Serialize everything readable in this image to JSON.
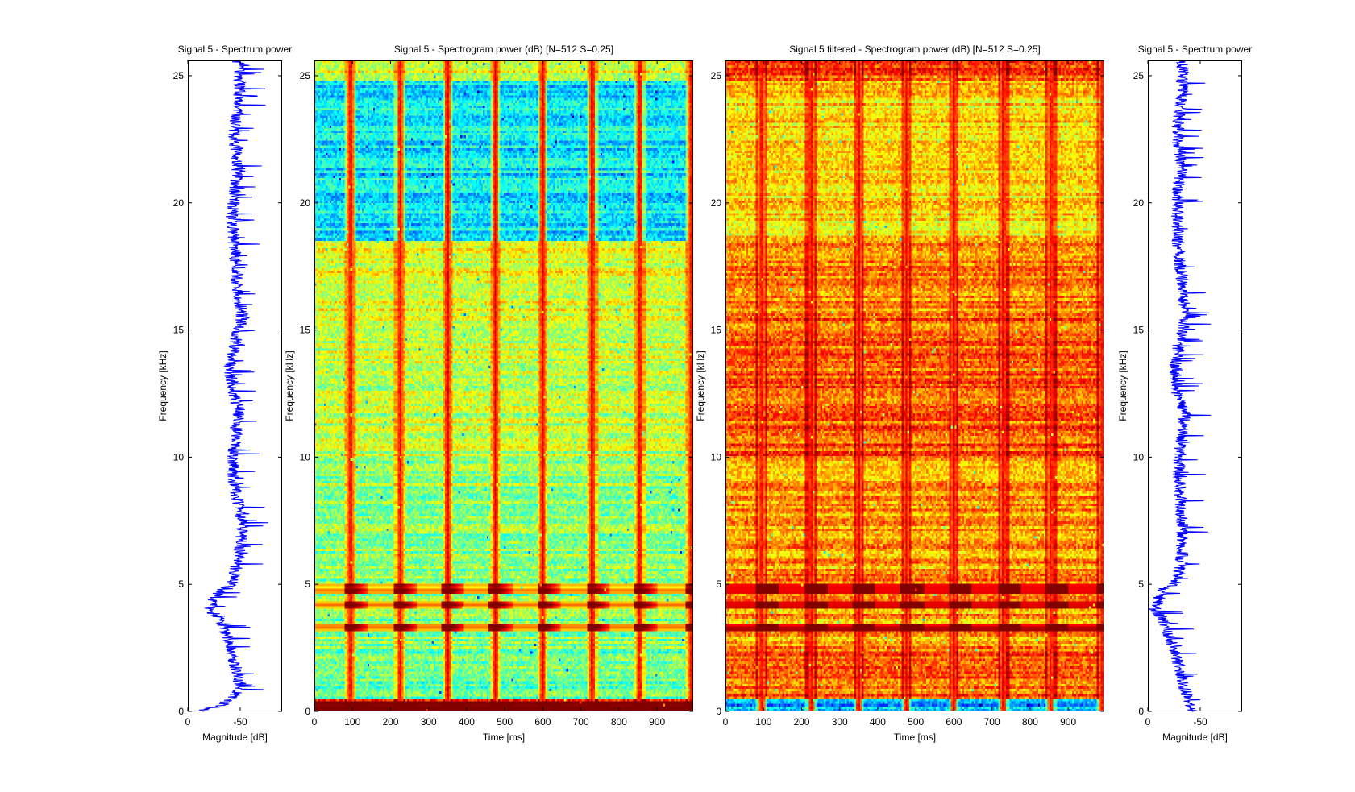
{
  "colors": {
    "spectrum_line": "#0000ff",
    "axes": "#000000",
    "background": "#ffffff",
    "colormap": "jet"
  },
  "chart_data": [
    {
      "id": "spectrum-left",
      "type": "line",
      "title": "Signal 5 - Spectrum power",
      "xlabel": "Magnitude [dB]",
      "ylabel": "Frequency [kHz]",
      "xlim": [
        0,
        -90
      ],
      "ylim": [
        0,
        25.6
      ],
      "xticks": [
        0,
        -50
      ],
      "xtick_labels": [
        "0",
        "-50"
      ],
      "yticks": [
        0,
        5,
        10,
        15,
        20,
        25
      ],
      "ytick_labels": [
        "0",
        "5",
        "10",
        "15",
        "20",
        "25"
      ],
      "series": [
        {
          "color": "#0000ff",
          "freq_khz": [
            0,
            0.2,
            0.6,
            1.0,
            1.4,
            2.0,
            2.6,
            3.2,
            3.6,
            4.0,
            4.4,
            4.8,
            5.0,
            5.4,
            6.0,
            7.0,
            8.0,
            9.0,
            10.0,
            11.0,
            11.8,
            12.5,
            13.5,
            14.5,
            15.5,
            16.5,
            17.5,
            18.5,
            19.5,
            20.5,
            21.5,
            22.5,
            23.5,
            24.5,
            25.6
          ],
          "magnitude_db": [
            -10,
            -30,
            -45,
            -50,
            -48,
            -44,
            -40,
            -35,
            -33,
            -20,
            -25,
            -30,
            -42,
            -45,
            -48,
            -52,
            -49,
            -44,
            -43,
            -46,
            -49,
            -44,
            -40,
            -45,
            -52,
            -48,
            -46,
            -44,
            -42,
            -45,
            -48,
            -44,
            -47,
            -50,
            -48
          ],
          "noise_spread_db": 12
        }
      ]
    },
    {
      "id": "spectrogram-raw",
      "type": "heatmap",
      "title": "Signal 5 - Spectrogram power (dB) [N=512 S=0.25]",
      "xlabel": "Time [ms]",
      "ylabel": "Frequency [kHz]",
      "xlim": [
        0,
        995
      ],
      "ylim": [
        0,
        25.6
      ],
      "xticks": [
        0,
        100,
        200,
        300,
        400,
        500,
        600,
        700,
        800,
        900
      ],
      "xtick_labels": [
        "0",
        "100",
        "200",
        "300",
        "400",
        "500",
        "600",
        "700",
        "800",
        "900"
      ],
      "yticks": [
        0,
        5,
        10,
        15,
        20,
        25
      ],
      "ytick_labels": [
        "0",
        "5",
        "10",
        "15",
        "20",
        "25"
      ],
      "colormap": "jet",
      "pulse_times_ms": [
        95,
        225,
        350,
        475,
        600,
        730,
        855,
        990
      ],
      "strong_bands_khz": [
        0.2,
        3.3,
        4.2,
        4.8
      ],
      "band_levels": [
        {
          "from_khz": 0,
          "to_khz": 0.5,
          "level": 0.85
        },
        {
          "from_khz": 0.5,
          "to_khz": 2.5,
          "level": 0.48
        },
        {
          "from_khz": 2.5,
          "to_khz": 6,
          "level": 0.5
        },
        {
          "from_khz": 6,
          "to_khz": 10,
          "level": 0.52
        },
        {
          "from_khz": 10,
          "to_khz": 15.5,
          "level": 0.56
        },
        {
          "from_khz": 15.5,
          "to_khz": 18.5,
          "level": 0.6
        },
        {
          "from_khz": 18.5,
          "to_khz": 24.8,
          "level": 0.36
        },
        {
          "from_khz": 24.8,
          "to_khz": 25.6,
          "level": 0.6
        }
      ]
    },
    {
      "id": "spectrogram-filtered",
      "type": "heatmap",
      "title": "Signal 5 filtered - Spectrogram power (dB) [N=512 S=0.25]",
      "xlabel": "Time [ms]",
      "ylabel": "Frequency [kHz]",
      "xlim": [
        0,
        995
      ],
      "ylim": [
        0,
        25.6
      ],
      "xticks": [
        0,
        100,
        200,
        300,
        400,
        500,
        600,
        700,
        800,
        900
      ],
      "xtick_labels": [
        "0",
        "100",
        "200",
        "300",
        "400",
        "500",
        "600",
        "700",
        "800",
        "900"
      ],
      "yticks": [
        0,
        5,
        10,
        15,
        20,
        25
      ],
      "ytick_labels": [
        "0",
        "5",
        "10",
        "15",
        "20",
        "25"
      ],
      "colormap": "jet",
      "pulse_times_ms": [
        95,
        225,
        350,
        475,
        600,
        730,
        855,
        990
      ],
      "strong_bands_khz": [
        3.3,
        4.2,
        4.8
      ],
      "band_levels": [
        {
          "from_khz": 0,
          "to_khz": 0.5,
          "level": 0.3
        },
        {
          "from_khz": 0.5,
          "to_khz": 2.5,
          "level": 0.78
        },
        {
          "from_khz": 2.5,
          "to_khz": 6,
          "level": 0.72
        },
        {
          "from_khz": 6,
          "to_khz": 10,
          "level": 0.72
        },
        {
          "from_khz": 10,
          "to_khz": 15.5,
          "level": 0.78
        },
        {
          "from_khz": 15.5,
          "to_khz": 18.5,
          "level": 0.74
        },
        {
          "from_khz": 18.5,
          "to_khz": 24.8,
          "level": 0.66
        },
        {
          "from_khz": 24.8,
          "to_khz": 25.6,
          "level": 0.8
        }
      ]
    },
    {
      "id": "spectrum-right",
      "type": "line",
      "title": "Signal 5 - Spectrum power",
      "xlabel": "Magnitude [dB]",
      "ylabel": "Frequency [kHz]",
      "xlim": [
        0,
        -90
      ],
      "ylim": [
        0,
        25.6
      ],
      "xticks": [
        0,
        -50
      ],
      "xtick_labels": [
        "0",
        "-50"
      ],
      "yticks": [
        0,
        5,
        10,
        15,
        20,
        25
      ],
      "ytick_labels": [
        "0",
        "5",
        "10",
        "15",
        "20",
        "25"
      ],
      "series": [
        {
          "color": "#0000ff",
          "freq_khz": [
            0,
            0.3,
            0.6,
            1.0,
            1.4,
            2.0,
            2.6,
            3.2,
            3.6,
            4.0,
            4.4,
            4.8,
            5.0,
            5.4,
            6.0,
            7.0,
            8.0,
            9.0,
            10.0,
            11.0,
            11.8,
            12.5,
            13.5,
            14.5,
            15.5,
            16.5,
            17.5,
            18.5,
            19.5,
            20.5,
            21.5,
            22.5,
            23.5,
            24.5,
            25.6
          ],
          "magnitude_db": [
            -40,
            -40,
            -38,
            -34,
            -32,
            -28,
            -24,
            -18,
            -15,
            -5,
            -10,
            -15,
            -25,
            -30,
            -32,
            -33,
            -32,
            -30,
            -30,
            -33,
            -35,
            -28,
            -26,
            -30,
            -36,
            -34,
            -31,
            -29,
            -28,
            -29,
            -32,
            -28,
            -30,
            -33,
            -33
          ],
          "noise_spread_db": 12
        }
      ]
    }
  ]
}
